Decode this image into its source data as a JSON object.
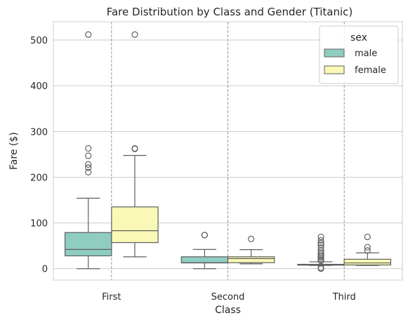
{
  "chart_data": {
    "type": "box",
    "title": "Fare Distribution by Class and Gender (Titanic)",
    "xlabel": "Class",
    "ylabel": "Fare ($)",
    "categories": [
      "First",
      "Second",
      "Third"
    ],
    "ylim": [
      -25,
      540
    ],
    "yticks": [
      0,
      100,
      200,
      300,
      400,
      500
    ],
    "grid": true,
    "legend": {
      "title": "sex",
      "placement": "top-right"
    },
    "series": [
      {
        "name": "male",
        "color": "#8fcdc1",
        "boxes": [
          {
            "whislo": 0,
            "q1": 28,
            "med": 42,
            "q3": 79,
            "whishi": 154,
            "fliers": [
              211,
              221,
              228,
              247,
              263,
              512
            ]
          },
          {
            "whislo": 0,
            "q1": 12.5,
            "med": 13,
            "q3": 26,
            "whishi": 42,
            "fliers": [
              73.5,
              73.5
            ]
          },
          {
            "whislo": 7,
            "q1": 7.75,
            "med": 7.9,
            "q3": 9.5,
            "whishi": 15,
            "fliers": [
              0,
              2,
              17,
              20,
              24,
              27,
              31,
              35,
              39,
              46,
              52,
              56,
              62,
              69.5
            ]
          }
        ]
      },
      {
        "name": "female",
        "color": "#f9f8b6",
        "boxes": [
          {
            "whislo": 25.9,
            "q1": 57,
            "med": 83,
            "q3": 135,
            "whishi": 247.5,
            "fliers": [
              262,
              263,
              512
            ]
          },
          {
            "whislo": 10.5,
            "q1": 13,
            "med": 22,
            "q3": 26,
            "whishi": 41.6,
            "fliers": [
              65
            ]
          },
          {
            "whislo": 7,
            "q1": 8,
            "med": 12.5,
            "q3": 20.6,
            "whishi": 34.5,
            "fliers": [
              39.7,
              46.9,
              69.5
            ]
          }
        ]
      }
    ]
  }
}
